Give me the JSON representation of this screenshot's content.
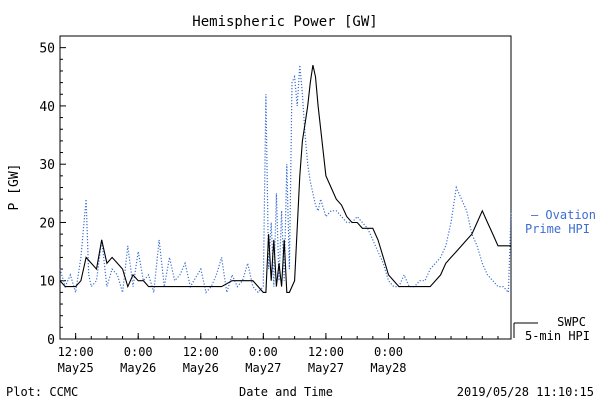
{
  "chart_data": {
    "type": "line",
    "title": "Hemispheric Power [GW]",
    "xlabel": "Date and Time",
    "ylabel": "P [GW]",
    "ylim": [
      0,
      52
    ],
    "yticks": [
      0,
      10,
      20,
      30,
      40,
      50
    ],
    "xrange": [
      "2019-05-25T09:00",
      "2019-05-28T23:30"
    ],
    "xticks": [
      {
        "time": "2019-05-25T12:00",
        "label": "12:00",
        "date": "May25"
      },
      {
        "time": "2019-05-26T00:00",
        "label": "0:00",
        "date": "May26"
      },
      {
        "time": "2019-05-26T12:00",
        "label": "12:00",
        "date": "May26"
      },
      {
        "time": "2019-05-27T00:00",
        "label": "0:00",
        "date": "May27"
      },
      {
        "time": "2019-05-27T12:00",
        "label": "12:00",
        "date": "May27"
      },
      {
        "time": "2019-05-28T00:00",
        "label": "0:00",
        "date": "May28"
      }
    ],
    "series": [
      {
        "name": "Ovation Prime HPI",
        "label_lines": [
          "— Ovation",
          "Prime HPI"
        ],
        "color": "#3c6fd0",
        "style": "dotted",
        "x": [
          "2019-05-25T09:00",
          "2019-05-25T10:00",
          "2019-05-25T11:00",
          "2019-05-25T12:00",
          "2019-05-25T13:00",
          "2019-05-25T14:00",
          "2019-05-25T14:30",
          "2019-05-25T15:00",
          "2019-05-25T16:00",
          "2019-05-25T17:00",
          "2019-05-25T18:00",
          "2019-05-25T19:00",
          "2019-05-25T20:00",
          "2019-05-25T21:00",
          "2019-05-25T22:00",
          "2019-05-25T23:00",
          "2019-05-26T00:00",
          "2019-05-26T01:00",
          "2019-05-26T02:00",
          "2019-05-26T03:00",
          "2019-05-26T04:00",
          "2019-05-26T05:00",
          "2019-05-26T06:00",
          "2019-05-26T07:00",
          "2019-05-26T08:00",
          "2019-05-26T09:00",
          "2019-05-26T10:00",
          "2019-05-26T12:00",
          "2019-05-26T13:00",
          "2019-05-26T14:00",
          "2019-05-26T15:00",
          "2019-05-26T16:00",
          "2019-05-26T17:00",
          "2019-05-26T18:00",
          "2019-05-26T19:00",
          "2019-05-26T20:00",
          "2019-05-26T21:00",
          "2019-05-26T22:00",
          "2019-05-26T23:00",
          "2019-05-27T00:00",
          "2019-05-27T00:30",
          "2019-05-27T01:00",
          "2019-05-27T01:30",
          "2019-05-27T02:00",
          "2019-05-27T02:30",
          "2019-05-27T03:00",
          "2019-05-27T03:30",
          "2019-05-27T04:00",
          "2019-05-27T04:30",
          "2019-05-27T05:00",
          "2019-05-27T05:30",
          "2019-05-27T06:00",
          "2019-05-27T06:30",
          "2019-05-27T07:00",
          "2019-05-27T07:30",
          "2019-05-27T08:00",
          "2019-05-27T08:30",
          "2019-05-27T09:00",
          "2019-05-27T09:30",
          "2019-05-27T10:00",
          "2019-05-27T10:30",
          "2019-05-27T11:00",
          "2019-05-27T12:00",
          "2019-05-27T13:00",
          "2019-05-27T14:00",
          "2019-05-27T15:00",
          "2019-05-27T16:00",
          "2019-05-27T17:00",
          "2019-05-27T18:00",
          "2019-05-27T19:00",
          "2019-05-27T20:00",
          "2019-05-27T21:00",
          "2019-05-27T22:00",
          "2019-05-27T23:00",
          "2019-05-28T00:00",
          "2019-05-28T01:00",
          "2019-05-28T02:00",
          "2019-05-28T03:00",
          "2019-05-28T04:00",
          "2019-05-28T05:00",
          "2019-05-28T06:00",
          "2019-05-28T07:00",
          "2019-05-28T08:00",
          "2019-05-28T09:00",
          "2019-05-28T10:00",
          "2019-05-28T11:00",
          "2019-05-28T12:00",
          "2019-05-28T13:00",
          "2019-05-28T14:00",
          "2019-05-28T15:00",
          "2019-05-28T16:00",
          "2019-05-28T17:00",
          "2019-05-28T18:00",
          "2019-05-28T19:00",
          "2019-05-28T20:00",
          "2019-05-28T21:00",
          "2019-05-28T22:00",
          "2019-05-28T23:00",
          "2019-05-28T23:30"
        ],
        "y": [
          12,
          9,
          11,
          8,
          14,
          24,
          11,
          9,
          10,
          17,
          9,
          12,
          11,
          8,
          16,
          9,
          15,
          10,
          11,
          8,
          17,
          9,
          14,
          10,
          11,
          13,
          9,
          12,
          8,
          9,
          11,
          14,
          8,
          11,
          9,
          10,
          13,
          9,
          8,
          9,
          42,
          12,
          20,
          9,
          25,
          10,
          22,
          10,
          30,
          12,
          44,
          45,
          40,
          47,
          42,
          35,
          30,
          27,
          25,
          23,
          22,
          24,
          21,
          22,
          22,
          21,
          20,
          20,
          21,
          20,
          19,
          17,
          15,
          13,
          10,
          9,
          9,
          11,
          9,
          9,
          10,
          10,
          12,
          13,
          14,
          16,
          20,
          26,
          24,
          22,
          18,
          16,
          13,
          11,
          10,
          9,
          9,
          8,
          22
        ]
      },
      {
        "name": "SWPC 5-min HPI",
        "label_lines": [
          "SWPC",
          "5-min HPI"
        ],
        "color": "#000000",
        "style": "solid",
        "x": [
          "2019-05-25T09:00",
          "2019-05-25T10:00",
          "2019-05-25T11:00",
          "2019-05-25T12:00",
          "2019-05-25T13:00",
          "2019-05-25T14:00",
          "2019-05-25T15:00",
          "2019-05-25T16:00",
          "2019-05-25T17:00",
          "2019-05-25T18:00",
          "2019-05-25T19:00",
          "2019-05-25T20:00",
          "2019-05-25T21:00",
          "2019-05-25T22:00",
          "2019-05-25T23:00",
          "2019-05-26T00:00",
          "2019-05-26T01:00",
          "2019-05-26T02:00",
          "2019-05-26T03:00",
          "2019-05-26T04:00",
          "2019-05-26T06:00",
          "2019-05-26T08:00",
          "2019-05-26T10:00",
          "2019-05-26T12:00",
          "2019-05-26T14:00",
          "2019-05-26T16:00",
          "2019-05-26T18:00",
          "2019-05-26T20:00",
          "2019-05-26T22:00",
          "2019-05-27T00:00",
          "2019-05-27T00:30",
          "2019-05-27T01:00",
          "2019-05-27T01:30",
          "2019-05-27T02:00",
          "2019-05-27T02:30",
          "2019-05-27T03:00",
          "2019-05-27T03:30",
          "2019-05-27T04:00",
          "2019-05-27T04:30",
          "2019-05-27T05:00",
          "2019-05-27T06:00",
          "2019-05-27T07:00",
          "2019-05-27T07:30",
          "2019-05-27T08:00",
          "2019-05-27T08:30",
          "2019-05-27T09:00",
          "2019-05-27T09:30",
          "2019-05-27T10:00",
          "2019-05-27T10:30",
          "2019-05-27T11:00",
          "2019-05-27T11:30",
          "2019-05-27T12:00",
          "2019-05-27T13:00",
          "2019-05-27T14:00",
          "2019-05-27T15:00",
          "2019-05-27T16:00",
          "2019-05-27T17:00",
          "2019-05-27T18:00",
          "2019-05-27T19:00",
          "2019-05-27T20:00",
          "2019-05-27T21:00",
          "2019-05-27T22:00",
          "2019-05-27T23:00",
          "2019-05-28T00:00",
          "2019-05-28T01:00",
          "2019-05-28T02:00",
          "2019-05-28T03:00",
          "2019-05-28T04:00",
          "2019-05-28T05:00",
          "2019-05-28T06:00",
          "2019-05-28T07:00",
          "2019-05-28T08:00",
          "2019-05-28T09:00",
          "2019-05-28T10:00",
          "2019-05-28T11:00",
          "2019-05-28T12:00",
          "2019-05-28T13:00",
          "2019-05-28T14:00",
          "2019-05-28T15:00",
          "2019-05-28T16:00",
          "2019-05-28T17:00",
          "2019-05-28T18:00",
          "2019-05-28T19:00",
          "2019-05-28T20:00",
          "2019-05-28T21:00",
          "2019-05-28T22:00",
          "2019-05-28T23:00",
          "2019-05-28T23:30"
        ],
        "y": [
          10,
          9,
          9,
          9,
          10,
          14,
          13,
          12,
          17,
          13,
          14,
          13,
          12,
          9,
          11,
          10,
          10,
          9,
          9,
          9,
          9,
          9,
          9,
          9,
          9,
          9,
          10,
          10,
          10,
          8,
          8,
          18,
          10,
          17,
          9,
          13,
          9,
          17,
          8,
          8,
          10,
          28,
          34,
          37,
          40,
          44,
          47,
          45,
          40,
          36,
          32,
          28,
          26,
          24,
          23,
          21,
          20,
          20,
          19,
          19,
          19,
          17,
          14,
          11,
          10,
          9,
          9,
          9,
          9,
          9,
          9,
          9,
          10,
          11,
          13,
          14,
          15,
          16,
          17,
          18,
          20,
          22,
          20,
          18,
          16,
          16,
          16,
          16
        ]
      }
    ],
    "legend": "right",
    "grid": false
  },
  "footer": {
    "plot_credit": "Plot: CCMC",
    "timestamp": "2019/05/28 11:10:15"
  }
}
